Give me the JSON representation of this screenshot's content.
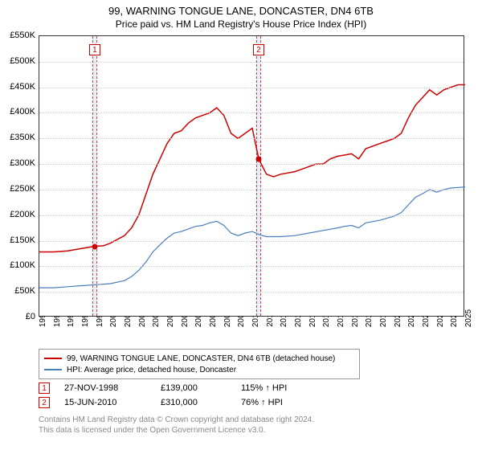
{
  "title": "99, WARNING TONGUE LANE, DONCASTER, DN4 6TB",
  "subtitle": "Price paid vs. HM Land Registry's House Price Index (HPI)",
  "chart": {
    "type": "line",
    "xlim": [
      1995,
      2025
    ],
    "ylim": [
      0,
      550000
    ],
    "ytick_step": 50000,
    "ytick_prefix": "£",
    "ytick_suffix": "K",
    "xtick_step": 1,
    "background_color": "#ffffff",
    "grid_color": "#cccccc",
    "series": [
      {
        "name": "property",
        "label": "99, WARNING TONGUE LANE, DONCASTER, DN4 6TB (detached house)",
        "color": "#cc0000",
        "line_width": 1.5,
        "data": [
          [
            1995,
            128000
          ],
          [
            1996,
            128000
          ],
          [
            1997,
            130000
          ],
          [
            1998,
            135000
          ],
          [
            1998.9,
            139000
          ],
          [
            1999.5,
            140000
          ],
          [
            2000,
            145000
          ],
          [
            2001,
            160000
          ],
          [
            2001.5,
            175000
          ],
          [
            2002,
            200000
          ],
          [
            2002.5,
            240000
          ],
          [
            2003,
            280000
          ],
          [
            2003.5,
            310000
          ],
          [
            2004,
            340000
          ],
          [
            2004.5,
            360000
          ],
          [
            2005,
            365000
          ],
          [
            2005.5,
            380000
          ],
          [
            2006,
            390000
          ],
          [
            2006.5,
            395000
          ],
          [
            2007,
            400000
          ],
          [
            2007.5,
            410000
          ],
          [
            2008,
            395000
          ],
          [
            2008.5,
            360000
          ],
          [
            2009,
            350000
          ],
          [
            2009.5,
            360000
          ],
          [
            2010,
            370000
          ],
          [
            2010.45,
            310000
          ],
          [
            2011,
            280000
          ],
          [
            2011.5,
            275000
          ],
          [
            2012,
            280000
          ],
          [
            2013,
            285000
          ],
          [
            2014,
            295000
          ],
          [
            2014.5,
            300000
          ],
          [
            2015,
            300000
          ],
          [
            2015.5,
            310000
          ],
          [
            2016,
            315000
          ],
          [
            2017,
            320000
          ],
          [
            2017.5,
            310000
          ],
          [
            2018,
            330000
          ],
          [
            2019,
            340000
          ],
          [
            2019.5,
            345000
          ],
          [
            2020,
            350000
          ],
          [
            2020.5,
            360000
          ],
          [
            2021,
            390000
          ],
          [
            2021.5,
            415000
          ],
          [
            2022,
            430000
          ],
          [
            2022.5,
            445000
          ],
          [
            2023,
            435000
          ],
          [
            2023.5,
            445000
          ],
          [
            2024,
            450000
          ],
          [
            2024.5,
            455000
          ],
          [
            2025,
            455000
          ]
        ]
      },
      {
        "name": "hpi",
        "label": "HPI: Average price, detached house, Doncaster",
        "color": "#4a7ebb",
        "line_width": 1.2,
        "data": [
          [
            1995,
            58000
          ],
          [
            1996,
            58000
          ],
          [
            1997,
            60000
          ],
          [
            1998,
            62000
          ],
          [
            1999,
            64000
          ],
          [
            2000,
            66000
          ],
          [
            2001,
            72000
          ],
          [
            2001.5,
            80000
          ],
          [
            2002,
            92000
          ],
          [
            2002.5,
            108000
          ],
          [
            2003,
            128000
          ],
          [
            2003.5,
            142000
          ],
          [
            2004,
            155000
          ],
          [
            2004.5,
            165000
          ],
          [
            2005,
            168000
          ],
          [
            2005.5,
            173000
          ],
          [
            2006,
            178000
          ],
          [
            2006.5,
            180000
          ],
          [
            2007,
            185000
          ],
          [
            2007.5,
            188000
          ],
          [
            2008,
            180000
          ],
          [
            2008.5,
            165000
          ],
          [
            2009,
            160000
          ],
          [
            2009.5,
            165000
          ],
          [
            2010,
            168000
          ],
          [
            2010.5,
            162000
          ],
          [
            2011,
            158000
          ],
          [
            2012,
            158000
          ],
          [
            2013,
            160000
          ],
          [
            2014,
            165000
          ],
          [
            2015,
            170000
          ],
          [
            2016,
            175000
          ],
          [
            2016.5,
            178000
          ],
          [
            2017,
            180000
          ],
          [
            2017.5,
            175000
          ],
          [
            2018,
            185000
          ],
          [
            2019,
            190000
          ],
          [
            2020,
            198000
          ],
          [
            2020.5,
            205000
          ],
          [
            2021,
            220000
          ],
          [
            2021.5,
            235000
          ],
          [
            2022,
            242000
          ],
          [
            2022.5,
            250000
          ],
          [
            2023,
            245000
          ],
          [
            2023.5,
            250000
          ],
          [
            2024,
            253000
          ],
          [
            2025,
            255000
          ]
        ]
      }
    ],
    "sale_bands": [
      {
        "index": 1,
        "x": 1998.9,
        "width_years": 0.3
      },
      {
        "index": 2,
        "x": 2010.45,
        "width_years": 0.3
      }
    ],
    "sale_points": [
      {
        "x": 1998.9,
        "y": 139000,
        "color": "#cc0000"
      },
      {
        "x": 2010.45,
        "y": 310000,
        "color": "#cc0000"
      }
    ]
  },
  "legend": {
    "items": [
      {
        "color": "#cc0000",
        "label": "99, WARNING TONGUE LANE, DONCASTER, DN4 6TB (detached house)"
      },
      {
        "color": "#4a7ebb",
        "label": "HPI: Average price, detached house, Doncaster"
      }
    ]
  },
  "sales": [
    {
      "index": "1",
      "date": "27-NOV-1998",
      "price": "£139,000",
      "delta": "115% ↑ HPI"
    },
    {
      "index": "2",
      "date": "15-JUN-2010",
      "price": "£310,000",
      "delta": "76% ↑ HPI"
    }
  ],
  "footer": {
    "line1": "Contains HM Land Registry data © Crown copyright and database right 2024.",
    "line2": "This data is licensed under the Open Government Licence v3.0."
  }
}
